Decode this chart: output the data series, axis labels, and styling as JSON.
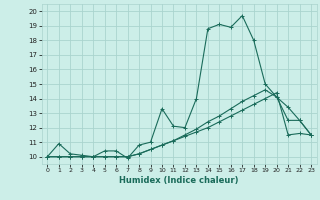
{
  "title": "",
  "xlabel": "Humidex (Indice chaleur)",
  "bg_color": "#cceee8",
  "grid_color": "#aad4ce",
  "line_color": "#1a6b5a",
  "xlim": [
    -0.5,
    23.5
  ],
  "ylim": [
    9.5,
    20.5
  ],
  "yticks": [
    10,
    11,
    12,
    13,
    14,
    15,
    16,
    17,
    18,
    19,
    20
  ],
  "xticks": [
    0,
    1,
    2,
    3,
    4,
    5,
    6,
    7,
    8,
    9,
    10,
    11,
    12,
    13,
    14,
    15,
    16,
    17,
    18,
    19,
    20,
    21,
    22,
    23
  ],
  "series": [
    [
      10.0,
      10.9,
      10.2,
      10.1,
      10.0,
      10.4,
      10.4,
      9.9,
      10.8,
      11.0,
      13.3,
      12.1,
      12.0,
      14.0,
      18.8,
      19.1,
      18.9,
      19.7,
      18.0,
      15.0,
      14.1,
      13.4,
      12.5,
      11.5
    ],
    [
      10.0,
      10.0,
      10.0,
      10.0,
      10.0,
      10.0,
      10.0,
      10.0,
      10.2,
      10.5,
      10.8,
      11.1,
      11.4,
      11.7,
      12.0,
      12.4,
      12.8,
      13.2,
      13.6,
      14.0,
      14.4,
      11.5,
      11.6,
      11.5
    ],
    [
      10.0,
      10.0,
      10.0,
      10.0,
      10.0,
      10.0,
      10.0,
      10.0,
      10.2,
      10.5,
      10.8,
      11.1,
      11.5,
      11.9,
      12.4,
      12.8,
      13.3,
      13.8,
      14.2,
      14.6,
      14.1,
      12.5,
      12.5,
      11.5
    ]
  ]
}
